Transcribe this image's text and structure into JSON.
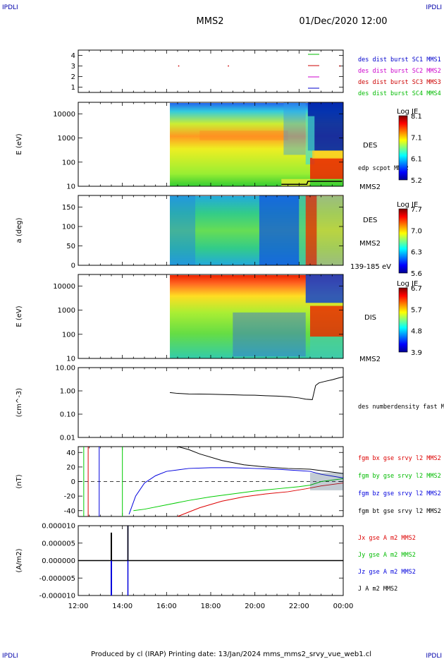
{
  "header": {
    "corner_tl": "IPDLI",
    "corner_tr": "IPDLI",
    "spacecraft": "MMS2",
    "datetime": "01/Dec/2020 12:00"
  },
  "footer": {
    "text": "Produced by cl (IRAP)   Printing date: 13/Jan/2024   mms_mms2_srvy_vue_web1.cl",
    "corner_bl": "IPDLI",
    "corner_br": "IPDLI"
  },
  "colors": {
    "mms1": "#0000cc",
    "mms2": "#cc00cc",
    "mms3": "#cc0000",
    "mms4": "#00bb00",
    "bx": "#dd0000",
    "by": "#00cc00",
    "bz": "#0000dd",
    "bt": "#000000"
  },
  "chart_data": [
    {
      "type": "scatter",
      "id": "burst",
      "yticks": [
        "4",
        "3",
        "2",
        "1"
      ],
      "ylim": [
        0.5,
        4.5
      ],
      "legend": [
        {
          "label": "des dist burst SC1 MMS1",
          "color": "#0000cc"
        },
        {
          "label": "des dist burst SC2 MMS2",
          "color": "#cc00cc"
        },
        {
          "label": "des dist burst SC3 MMS3",
          "color": "#cc0000"
        },
        {
          "label": "des dist burst SC4 MMS4",
          "color": "#00bb00"
        }
      ],
      "points": [
        {
          "t": 16.55,
          "y": 3
        },
        {
          "t": 18.8,
          "y": 3
        },
        {
          "t": 23.85,
          "y": 3
        }
      ]
    },
    {
      "type": "heatmap",
      "id": "des_e",
      "ylabel": "E (eV)",
      "yscale": "log",
      "ylim": [
        10,
        30000
      ],
      "yticks": [
        "10000",
        "1000",
        "100",
        "10"
      ],
      "data_start_hour": 16.15,
      "instrument": "DES",
      "overlay_label": "edp scpot MMS2",
      "bottom_label": "MMS2",
      "colorbar": {
        "title": "Log JE",
        "min": 5.2,
        "max": 8.1,
        "ticks": [
          "8.1",
          "7.1",
          "6.1",
          "5.2"
        ]
      }
    },
    {
      "type": "heatmap",
      "id": "des_pa",
      "ylabel": "a (deg)",
      "ylim": [
        0,
        180
      ],
      "yticks": [
        "150",
        "100",
        "50",
        "0"
      ],
      "data_start_hour": 16.15,
      "instrument": "DES",
      "mid_label": "MMS2",
      "bottom_label": "139-185 eV",
      "colorbar": {
        "title": "Log JE",
        "min": 5.6,
        "max": 7.7,
        "ticks": [
          "7.7",
          "7.0",
          "6.3",
          "5.6"
        ]
      }
    },
    {
      "type": "heatmap",
      "id": "dis_e",
      "ylabel": "E (eV)",
      "yscale": "log",
      "ylim": [
        10,
        30000
      ],
      "yticks": [
        "10000",
        "1000",
        "100",
        "10"
      ],
      "data_start_hour": 16.15,
      "instrument": "DIS",
      "bottom_label": "MMS2",
      "colorbar": {
        "title": "Log JE",
        "min": 3.9,
        "max": 6.7,
        "ticks": [
          "6.7",
          "5.7",
          "4.8",
          "3.9"
        ]
      }
    },
    {
      "type": "line",
      "id": "density",
      "ylabel": "(cm^-3)",
      "yscale": "log",
      "ylim": [
        0.01,
        10
      ],
      "yticks": [
        "10.00",
        "1.00",
        "0.10",
        "0.01"
      ],
      "legend": [
        {
          "label": "des numberdensity fast M",
          "color": "#000000"
        }
      ],
      "series": [
        {
          "t": [
            16.15,
            16.5,
            17.0,
            17.5,
            18.0,
            18.5,
            19.0,
            19.5,
            20.0,
            20.5,
            21.0,
            21.5,
            22.0,
            22.3,
            22.6,
            22.75,
            22.9,
            23.2,
            23.5,
            23.8,
            24.0
          ],
          "v": [
            0.85,
            0.78,
            0.74,
            0.73,
            0.72,
            0.7,
            0.68,
            0.66,
            0.65,
            0.62,
            0.6,
            0.56,
            0.5,
            0.44,
            0.42,
            1.7,
            2.2,
            2.6,
            3.0,
            3.6,
            4.0
          ]
        }
      ]
    },
    {
      "type": "line",
      "id": "fgm",
      "ylabel": "(nT)",
      "ylim": [
        -48,
        48
      ],
      "yticks": [
        "40",
        "20",
        "0",
        "-20",
        "-40"
      ],
      "legend": [
        {
          "label": "fgm bx gse srvy l2 MMS2",
          "color": "#dd0000"
        },
        {
          "label": "fgm by gse srvy l2 MMS2",
          "color": "#00bb00"
        },
        {
          "label": "fgm bz gse srvy l2 MMS2",
          "color": "#0000dd"
        },
        {
          "label": "fgm bt gse srvy l2 MMS2",
          "color": "#000000"
        }
      ],
      "series": [
        {
          "name": "bx",
          "t": [
            16.5,
            17.5,
            18.5,
            19.5,
            20.5,
            21.5,
            22.3,
            23.0,
            24.0
          ],
          "v": [
            -48,
            -36,
            -27,
            -21,
            -17,
            -14,
            -10,
            -6,
            -2
          ]
        },
        {
          "name": "by",
          "t": [
            14.5,
            15.0,
            16.0,
            17.0,
            18.0,
            19.0,
            20.0,
            21.0,
            22.0,
            22.5,
            23.0,
            24.0
          ],
          "v": [
            -40,
            -38,
            -32,
            -26,
            -21,
            -17,
            -13,
            -10,
            -7,
            -5,
            0,
            4
          ]
        },
        {
          "name": "bz",
          "t": [
            14.3,
            14.6,
            15.0,
            15.5,
            16.0,
            17.0,
            18.0,
            19.0,
            20.0,
            21.0,
            22.0,
            22.5,
            23.0,
            24.0
          ],
          "v": [
            -45,
            -20,
            -2,
            8,
            14,
            18,
            19,
            19,
            18,
            17,
            15,
            14,
            10,
            5
          ]
        },
        {
          "name": "bt",
          "t": [
            16.5,
            17.0,
            17.5,
            18.5,
            19.5,
            20.5,
            21.5,
            22.5,
            23.0,
            24.0
          ],
          "v": [
            48,
            44,
            38,
            29,
            23,
            20,
            18,
            17,
            15,
            11
          ]
        }
      ]
    },
    {
      "type": "line",
      "id": "current",
      "ylabel": "(A/m2)",
      "ylim": [
        -0.0001,
        0.0001
      ],
      "yticks": [
        "0.000010",
        "0.000005",
        "0.000000",
        "-0.000005",
        "-0.000010"
      ],
      "legend": [
        {
          "label": "Jx gse A m2 MMS2",
          "color": "#dd0000"
        },
        {
          "label": "Jy gse A m2 MMS2",
          "color": "#00bb00"
        },
        {
          "label": "Jz gse A m2 MMS2",
          "color": "#0000dd"
        },
        {
          "label": "J A m2 MMS2",
          "color": "#000000"
        }
      ]
    }
  ],
  "time_axis": {
    "range": [
      12,
      24
    ],
    "ticks": [
      "12:00",
      "14:00",
      "16:00",
      "18:00",
      "20:00",
      "22:00",
      "00:00"
    ]
  }
}
